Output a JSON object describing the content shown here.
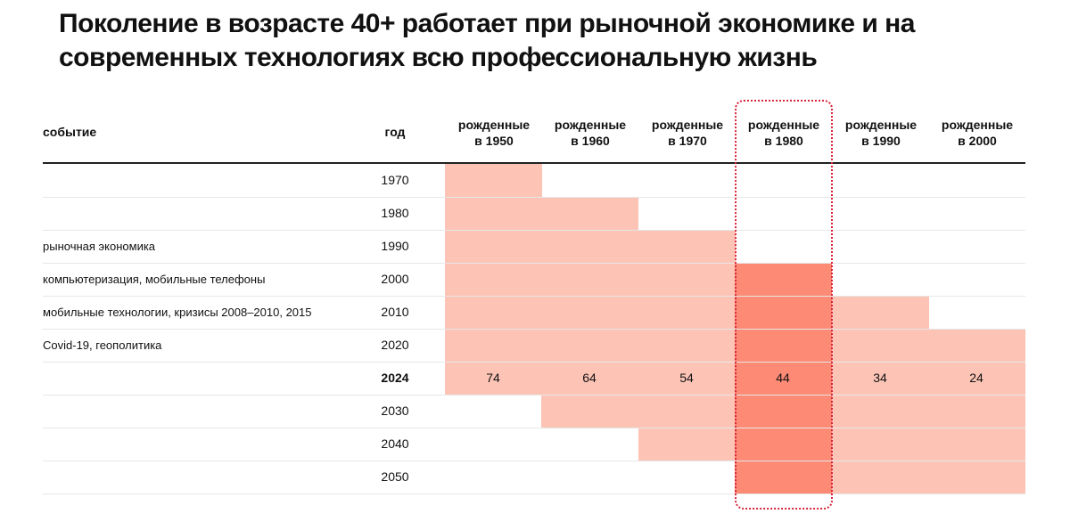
{
  "title_lines": [
    "Поколение в возрасте 40+ работает при рыночной экономике и на",
    "современных технологиях всю профессиональную жизнь"
  ],
  "header": {
    "event": "событие",
    "year": "год"
  },
  "colors": {
    "light": "#fdc4b6",
    "highlight": "#fc8a74",
    "highlight_border": "#d8243c"
  },
  "chart_data": {
    "type": "table",
    "columns": [
      {
        "line1": "рожденные",
        "line2": "в 1950",
        "birth_year": 1950
      },
      {
        "line1": "рожденные",
        "line2": "в 1960",
        "birth_year": 1960
      },
      {
        "line1": "рожденные",
        "line2": "в 1970",
        "birth_year": 1970
      },
      {
        "line1": "рожденные",
        "line2": "в 1980",
        "birth_year": 1980
      },
      {
        "line1": "рожденные",
        "line2": "в 1990",
        "birth_year": 1990
      },
      {
        "line1": "рожденные",
        "line2": "в 2000",
        "birth_year": 2000
      }
    ],
    "highlighted_column": 3,
    "rows": [
      {
        "year": "1970",
        "event": "",
        "bold": false,
        "ages": []
      },
      {
        "year": "1980",
        "event": "",
        "bold": false,
        "ages": []
      },
      {
        "year": "1990",
        "event": "рыночная экономика",
        "bold": false,
        "ages": []
      },
      {
        "year": "2000",
        "event": "компьютеризация, мобильные телефоны",
        "bold": false,
        "ages": []
      },
      {
        "year": "2010",
        "event": "мобильные технологии, кризисы 2008–2010, 2015",
        "bold": false,
        "ages": []
      },
      {
        "year": "2020",
        "event": "Covid-19, геополитика",
        "bold": false,
        "ages": []
      },
      {
        "year": "2024",
        "event": "",
        "bold": true,
        "ages": [
          "74",
          "64",
          "54",
          "44",
          "34",
          "24"
        ]
      },
      {
        "year": "2030",
        "event": "",
        "bold": false,
        "ages": []
      },
      {
        "year": "2040",
        "event": "",
        "bold": false,
        "ages": []
      },
      {
        "year": "2050",
        "event": "",
        "bold": false,
        "ages": []
      }
    ],
    "shaded_ranges": [
      {
        "column": 0,
        "from": "1970",
        "to": "2024"
      },
      {
        "column": 1,
        "from": "1980",
        "to": "2030"
      },
      {
        "column": 2,
        "from": "1990",
        "to": "2040"
      },
      {
        "column": 3,
        "from": "2000",
        "to": "2050"
      },
      {
        "column": 4,
        "from": "2010",
        "to": "2050"
      },
      {
        "column": 5,
        "from": "2020",
        "to": "2050"
      }
    ]
  }
}
